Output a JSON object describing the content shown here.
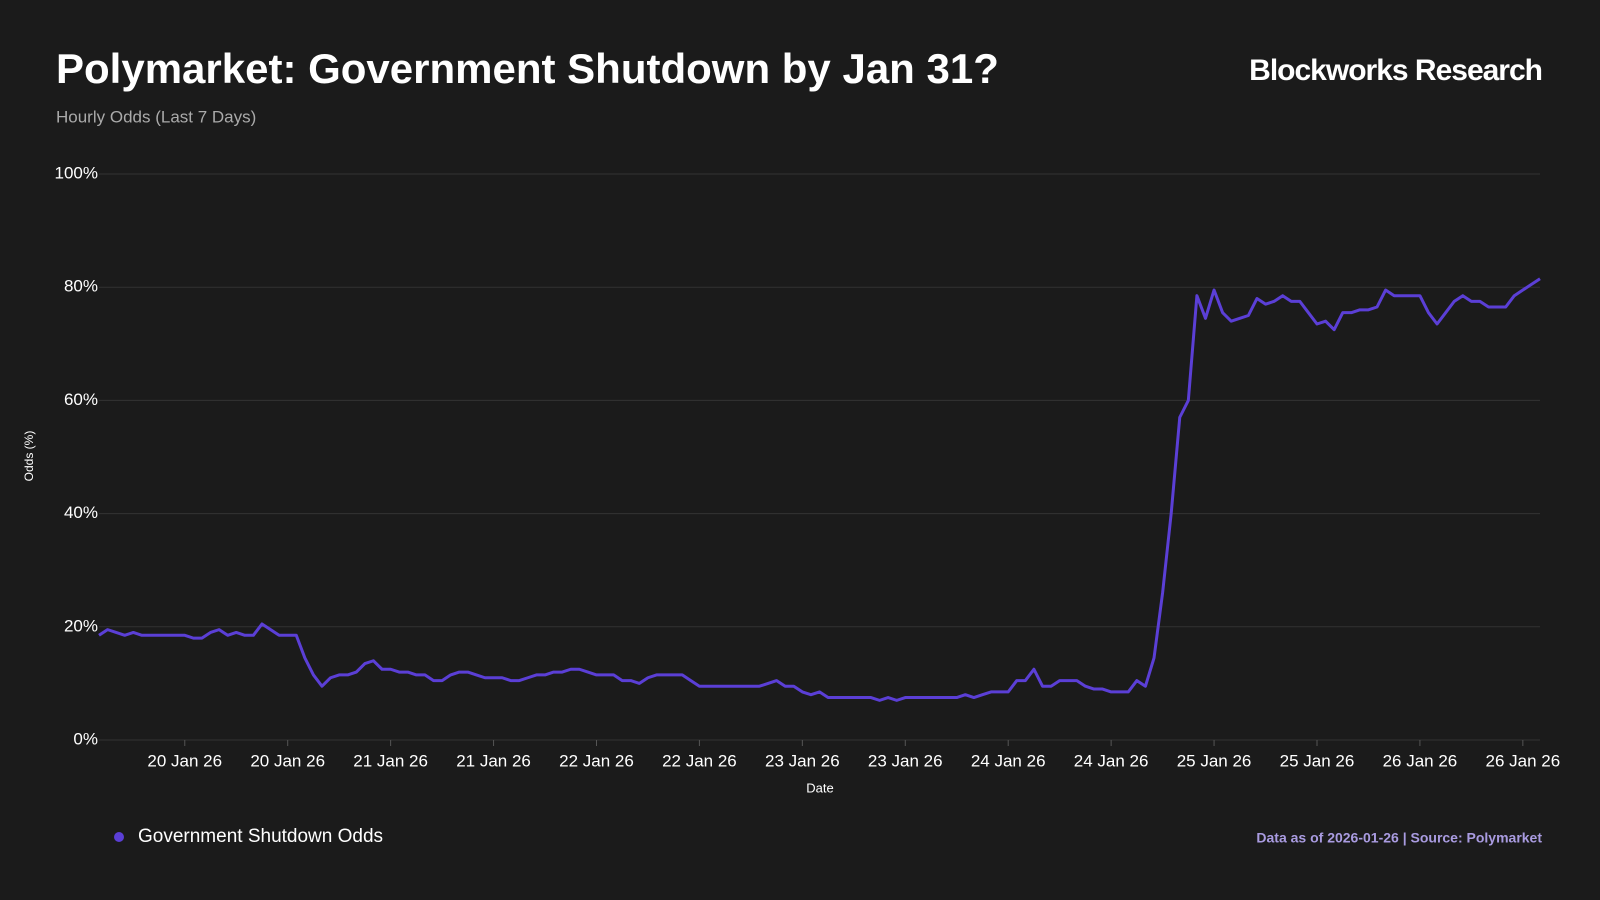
{
  "brand": "Blockworks Research",
  "footer": "Data as of 2026-01-26 | Source: Polymarket",
  "chart_data": {
    "type": "line",
    "title": "Polymarket: Government Shutdown by Jan 31?",
    "subtitle": "Hourly Odds (Last 7 Days)",
    "x_label": "Date",
    "y_label": "Odds (%)",
    "categories": [
      null,
      null,
      null,
      null,
      null,
      null,
      null,
      null,
      null,
      null,
      "20 Jan 26",
      null,
      null,
      null,
      null,
      null,
      null,
      null,
      null,
      null,
      null,
      null,
      "20 Jan 26",
      null,
      null,
      null,
      null,
      null,
      null,
      null,
      null,
      null,
      null,
      null,
      "21 Jan 26",
      null,
      null,
      null,
      null,
      null,
      null,
      null,
      null,
      null,
      null,
      null,
      "21 Jan 26",
      null,
      null,
      null,
      null,
      null,
      null,
      null,
      null,
      null,
      null,
      null,
      "22 Jan 26",
      null,
      null,
      null,
      null,
      null,
      null,
      null,
      null,
      null,
      null,
      null,
      "22 Jan 26",
      null,
      null,
      null,
      null,
      null,
      null,
      null,
      null,
      null,
      null,
      null,
      "23 Jan 26",
      null,
      null,
      null,
      null,
      null,
      null,
      null,
      null,
      null,
      null,
      null,
      "23 Jan 26",
      null,
      null,
      null,
      null,
      null,
      null,
      null,
      null,
      null,
      null,
      null,
      "24 Jan 26",
      null,
      null,
      null,
      null,
      null,
      null,
      null,
      null,
      null,
      null,
      null,
      "24 Jan 26",
      null,
      null,
      null,
      null,
      null,
      null,
      null,
      null,
      null,
      null,
      null,
      "25 Jan 26",
      null,
      null,
      null,
      null,
      null,
      null,
      null,
      null,
      null,
      null,
      null,
      "25 Jan 26",
      null,
      null,
      null,
      null,
      null,
      null,
      null,
      null,
      null,
      null,
      null,
      "26 Jan 26",
      null,
      null,
      null,
      null,
      null,
      null,
      null,
      null,
      null,
      null,
      null,
      "26 Jan 26",
      null,
      null
    ],
    "series": [
      {
        "name": "Government Shutdown Odds",
        "color": "#5b3fd6",
        "values": [
          18.5,
          19.5,
          19,
          18.5,
          19,
          18.5,
          18.5,
          18.5,
          18.5,
          18.5,
          18.5,
          18,
          18,
          19,
          19.5,
          18.5,
          19,
          18.5,
          18.5,
          20.5,
          19.5,
          18.5,
          18.5,
          18.5,
          14.5,
          11.5,
          9.5,
          11,
          11.5,
          11.5,
          12,
          13.5,
          14,
          12.5,
          12.5,
          12,
          12,
          11.5,
          11.5,
          10.5,
          10.5,
          11.5,
          12,
          12,
          11.5,
          11,
          11,
          11,
          10.5,
          10.5,
          11,
          11.5,
          11.5,
          12,
          12,
          12.5,
          12.5,
          12,
          11.5,
          11.5,
          11.5,
          10.5,
          10.5,
          10,
          11,
          11.5,
          11.5,
          11.5,
          11.5,
          10.5,
          9.5,
          9.5,
          9.5,
          9.5,
          9.5,
          9.5,
          9.5,
          9.5,
          10,
          10.5,
          9.5,
          9.5,
          8.5,
          8,
          8.5,
          7.5,
          7.5,
          7.5,
          7.5,
          7.5,
          7.5,
          7,
          7.5,
          7,
          7.5,
          7.5,
          7.5,
          7.5,
          7.5,
          7.5,
          7.5,
          8,
          7.5,
          8,
          8.5,
          8.5,
          8.5,
          10.5,
          10.5,
          12.5,
          9.5,
          9.5,
          10.5,
          10.5,
          10.5,
          9.5,
          9,
          9,
          8.5,
          8.5,
          8.5,
          10.5,
          9.5,
          14.5,
          26,
          40,
          57,
          60,
          78.5,
          74.5,
          79.5,
          75.5,
          74,
          74.5,
          75,
          78,
          77,
          77.5,
          78.5,
          77.5,
          77.5,
          75.5,
          73.5,
          74,
          72.5,
          75.5,
          75.5,
          76,
          76,
          76.5,
          79.5,
          78.5,
          78.5,
          78.5,
          78.5,
          75.5,
          73.5,
          75.5,
          77.5,
          78.5,
          77.5,
          77.5,
          76.5,
          76.5,
          76.5,
          78.5,
          79.5,
          80.5,
          81.5
        ]
      }
    ],
    "ylim": [
      0,
      100
    ],
    "yticks": [
      {
        "value": 0,
        "label": "0%"
      },
      {
        "value": 20,
        "label": "20%"
      },
      {
        "value": 40,
        "label": "40%"
      },
      {
        "value": 60,
        "label": "60%"
      },
      {
        "value": 80,
        "label": "80%"
      },
      {
        "value": 100,
        "label": "100%"
      }
    ],
    "grid": true
  }
}
